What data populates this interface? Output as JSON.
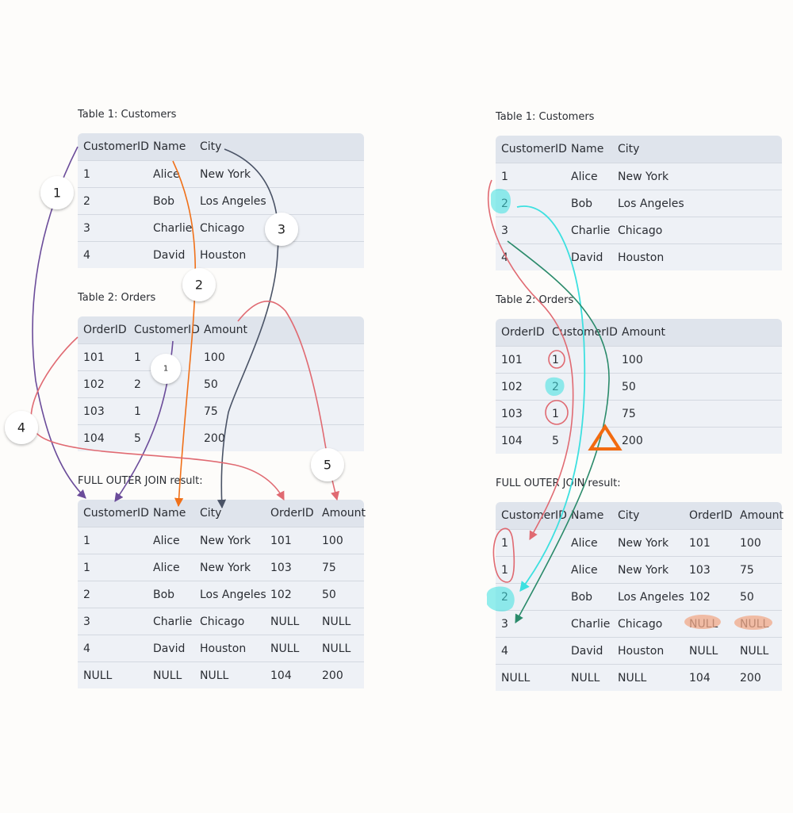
{
  "left": {
    "customers_caption": "Table 1: Customers",
    "orders_caption": "Table 2: Orders",
    "result_caption": "FULL OUTER JOIN result:",
    "customers": {
      "headers": [
        "CustomerID",
        "Name",
        "City"
      ],
      "rows": [
        [
          "1",
          "Alice",
          "New York"
        ],
        [
          "2",
          "Bob",
          "Los Angeles"
        ],
        [
          "3",
          "Charlie",
          "Chicago"
        ],
        [
          "4",
          "David",
          "Houston"
        ]
      ]
    },
    "orders": {
      "headers": [
        "OrderID",
        "CustomerID",
        "Amount"
      ],
      "rows": [
        [
          "101",
          "1",
          "100"
        ],
        [
          "102",
          "2",
          "50"
        ],
        [
          "103",
          "1",
          "75"
        ],
        [
          "104",
          "5",
          "200"
        ]
      ]
    },
    "result": {
      "headers": [
        "CustomerID",
        "Name",
        "City",
        "OrderID",
        "Amount"
      ],
      "rows": [
        [
          "1",
          "Alice",
          "New York",
          "101",
          "100"
        ],
        [
          "1",
          "Alice",
          "New York",
          "103",
          "75"
        ],
        [
          "2",
          "Bob",
          "Los Angeles",
          "102",
          "50"
        ],
        [
          "3",
          "Charlie",
          "Chicago",
          "NULL",
          "NULL"
        ],
        [
          "4",
          "David",
          "Houston",
          "NULL",
          "NULL"
        ],
        [
          "NULL",
          "NULL",
          "NULL",
          "104",
          "200"
        ]
      ]
    },
    "badges": [
      "1",
      "2",
      "3",
      "1",
      "4",
      "5"
    ]
  },
  "right": {
    "customers_caption": "Table 1: Customers",
    "orders_caption": "Table 2: Orders",
    "result_caption": "FULL OUTER JOIN result:",
    "customers": {
      "headers": [
        "CustomerID",
        "Name",
        "City"
      ],
      "rows": [
        [
          "1",
          "Alice",
          "New York"
        ],
        [
          "2",
          "Bob",
          "Los Angeles"
        ],
        [
          "3",
          "Charlie",
          "Chicago"
        ],
        [
          "4",
          "David",
          "Houston"
        ]
      ]
    },
    "orders": {
      "headers": [
        "OrderID",
        "CustomerID",
        "Amount"
      ],
      "rows": [
        [
          "101",
          "1",
          "100"
        ],
        [
          "102",
          "2",
          "50"
        ],
        [
          "103",
          "1",
          "75"
        ],
        [
          "104",
          "5",
          "200"
        ]
      ]
    },
    "result": {
      "headers": [
        "CustomerID",
        "Name",
        "City",
        "OrderID",
        "Amount"
      ],
      "rows": [
        [
          "1",
          "Alice",
          "New York",
          "101",
          "100"
        ],
        [
          "1",
          "Alice",
          "New York",
          "103",
          "75"
        ],
        [
          "2",
          "Bob",
          "Los Angeles",
          "102",
          "50"
        ],
        [
          "3",
          "Charlie",
          "Chicago",
          "NULL",
          "NULL"
        ],
        [
          "4",
          "David",
          "Houston",
          "NULL",
          "NULL"
        ],
        [
          "NULL",
          "NULL",
          "NULL",
          "104",
          "200"
        ]
      ]
    }
  },
  "colors": {
    "purple": "#6b4c9a",
    "orange": "#f07018",
    "slate": "#4a5366",
    "coral": "#e06a72",
    "cyan": "#3de0e0",
    "teal": "#2a8a6a",
    "peach": "#f0a888",
    "warning_orange": "#f26a10"
  }
}
